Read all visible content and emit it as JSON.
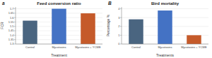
{
  "chart_data": [
    {
      "type": "bar",
      "title": "Feed conversion ratio",
      "x_label": "Treatment",
      "y_label": "FCR",
      "annotations": [
        "a"
      ],
      "categories": [
        "Control",
        "Mycotoxins",
        "Mycotoxins + YCWE"
      ],
      "values": [
        1.565,
        1.7,
        1.648
      ],
      "colors": [
        "#4a6580",
        "#4472c4",
        "#c55a2a"
      ],
      "ylim": [
        1.3,
        1.72
      ],
      "yticks": [
        1.3,
        1.35,
        1.4,
        1.45,
        1.5,
        1.55,
        1.6,
        1.65,
        1.7
      ]
    },
    {
      "type": "bar",
      "title": "Bird mortality",
      "x_label": "Treatments",
      "y_label": "Percentage %",
      "annotations": [
        "B"
      ],
      "categories": [
        "Control",
        "Mycotoxins",
        "Mycotoxins + YCWE"
      ],
      "values": [
        2.8,
        3.8,
        1.0
      ],
      "colors": [
        "#4a6580",
        "#4472c4",
        "#c55a2a"
      ],
      "ylim": [
        0,
        4.2
      ],
      "yticks": [
        0,
        1,
        2,
        3,
        4
      ]
    }
  ]
}
